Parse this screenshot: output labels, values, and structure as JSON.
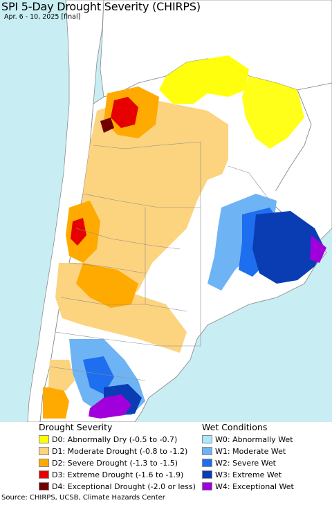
{
  "title": "SPI 5-Day Drought Severity (CHIRPS)",
  "subtitle": "Apr. 6 - 10, 2025 [final]",
  "colors": {
    "ocean": "#c8eef3",
    "land": "#ffffff",
    "neighbor_land": "#ffffff",
    "border": "#8c8c8c"
  },
  "legend": {
    "drought_heading": "Drought Severity",
    "wet_heading": "Wet Conditions",
    "drought_items": [
      {
        "label": "D0: Abnormally Dry (-0.5 to -0.7)",
        "color": "#ffff00"
      },
      {
        "label": "D1: Moderate Drought (-0.8 to -1.2)",
        "color": "#fcd37f"
      },
      {
        "label": "D2: Severe Drought (-1.3 to -1.5)",
        "color": "#ffaa00"
      },
      {
        "label": "D3: Extreme Drought (-1.6 to -1.9)",
        "color": "#e60000"
      },
      {
        "label": "D4: Exceptional Drought (-2.0 or less)",
        "color": "#730000"
      }
    ],
    "wet_items": [
      {
        "label": "W0: Abnormally Wet",
        "color": "#aae6ff"
      },
      {
        "label": "W1: Moderate Wet",
        "color": "#6eb4f5"
      },
      {
        "label": "W2: Severe Wet",
        "color": "#1e6ef0"
      },
      {
        "label": "W3: Extreme Wet",
        "color": "#0a3cb4"
      },
      {
        "label": "W4: Exceptional Wet",
        "color": "#a000dc"
      }
    ]
  },
  "source": "Source: CHIRPS, UCSB, Climate Hazards Center"
}
